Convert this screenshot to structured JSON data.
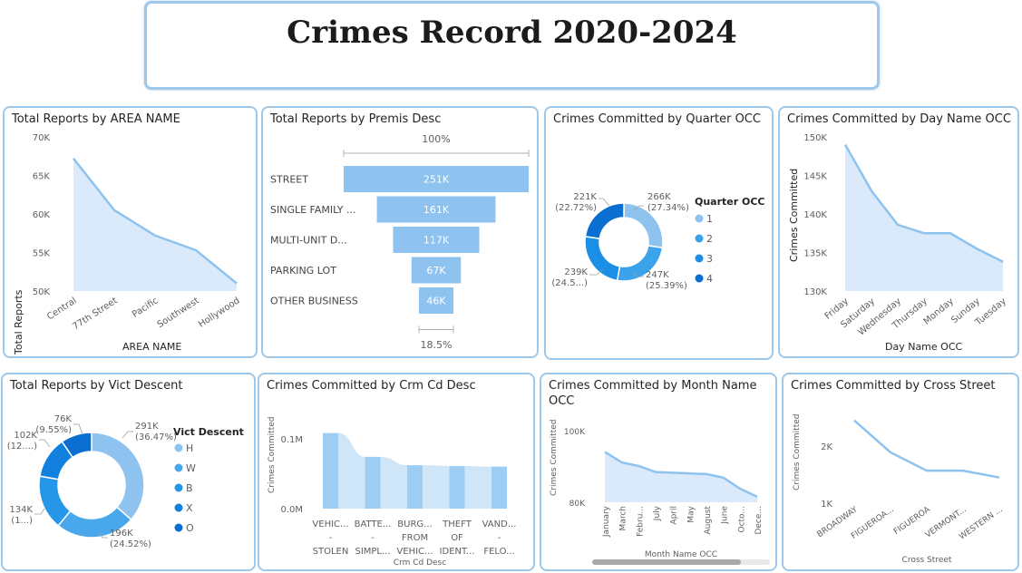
{
  "header": {
    "title": "Crimes Record 2020-2024"
  },
  "colors": {
    "card_border": "#9dc8ea",
    "line": "#8ec3ef",
    "area": "#dbeafb",
    "donut": [
      "#8ec3ef",
      "#3aa3ea",
      "#1b8ee6",
      "#0b6fd1"
    ]
  },
  "area_chart": {
    "title": "Total Reports by AREA NAME",
    "ylabel": "Total Reports",
    "xlabel": "AREA NAME",
    "yticks": [
      "70K",
      "65K",
      "60K",
      "55K",
      "50K"
    ],
    "chart_data": {
      "type": "area",
      "categories": [
        "Central",
        "77th Street",
        "Pacific",
        "Southwest",
        "Hollywood"
      ],
      "values": [
        67200,
        60500,
        57200,
        55300,
        51000
      ],
      "ylim": [
        50000,
        70000
      ]
    }
  },
  "funnel": {
    "title": "Total Reports by Premis Desc",
    "top_pct": "100%",
    "bottom_pct": "18.5%",
    "chart_data": {
      "type": "bar",
      "categories": [
        "STREET",
        "SINGLE FAMILY ...",
        "MULTI-UNIT D...",
        "PARKING LOT",
        "OTHER BUSINESS"
      ],
      "labels": [
        "251K",
        "161K",
        "117K",
        "67K",
        "46K"
      ],
      "values": [
        251,
        161,
        117,
        67,
        46
      ]
    }
  },
  "quarter": {
    "title": "Crimes Committed by Quarter OCC",
    "legend_title": "Quarter OCC",
    "legend": [
      "1",
      "2",
      "3",
      "4"
    ],
    "labels": [
      [
        "266K",
        "(27.34%)"
      ],
      [
        "247K",
        "(25.39%)"
      ],
      [
        "239K",
        "(24.5...)"
      ],
      [
        "221K",
        "(22.72%)"
      ]
    ],
    "chart_data": {
      "type": "pie",
      "categories": [
        "1",
        "2",
        "3",
        "4"
      ],
      "values": [
        266,
        247,
        239,
        221
      ]
    }
  },
  "dayname": {
    "title": "Crimes Committed by Day Name OCC",
    "ylabel": "Crimes Committed",
    "xlabel": "Day Name OCC",
    "yticks": [
      "150K",
      "145K",
      "140K",
      "135K",
      "130K"
    ],
    "chart_data": {
      "type": "area",
      "categories": [
        "Friday",
        "Saturday",
        "Wednesday",
        "Thursday",
        "Monday",
        "Sunday",
        "Tuesday"
      ],
      "values": [
        149000,
        143000,
        138600,
        137500,
        137500,
        135500,
        133800
      ],
      "ylim": [
        130000,
        150000
      ]
    }
  },
  "vict": {
    "title": "Total Reports by Vict Descent",
    "legend_title": "Vict Descent",
    "legend": [
      "H",
      "W",
      "B",
      "X",
      "O"
    ],
    "labels": [
      [
        "291K",
        "(36.47%)"
      ],
      [
        "196K",
        "(24.52%)"
      ],
      [
        "134K",
        "(1...)"
      ],
      [
        "102K",
        "(12....)"
      ],
      [
        "76K",
        "(9.55%)"
      ]
    ],
    "chart_data": {
      "type": "pie",
      "categories": [
        "H",
        "W",
        "B",
        "X",
        "O"
      ],
      "values": [
        291,
        196,
        134,
        102,
        76
      ]
    }
  },
  "crmcd": {
    "title": "Crimes Committed by Crm Cd Desc",
    "ylabel": "Crimes Committed",
    "xlabel": "Crm Cd Desc",
    "yticks": [
      "0.1M",
      "0.0M"
    ],
    "categories": [
      [
        "VEHIC...",
        "-",
        "STOLEN"
      ],
      [
        "BATTE...",
        "-",
        "SIMPL..."
      ],
      [
        "BURG...",
        "FROM",
        "VEHIC..."
      ],
      [
        "THEFT",
        "OF",
        "IDENT..."
      ],
      [
        "VAND...",
        "-",
        "FELO..."
      ]
    ],
    "chart_data": {
      "type": "bar",
      "categories": [
        "VEHIC... - STOLEN",
        "BATTE... - SIMPL...",
        "BURG... FROM VEHIC...",
        "THEFT OF IDENT...",
        "VAND... - FELO..."
      ],
      "values": [
        108000,
        74000,
        62000,
        61000,
        60000
      ],
      "ylim": [
        0,
        140000
      ]
    }
  },
  "month": {
    "title_line1": "Crimes Committed by Month Name",
    "title_line2": "OCC",
    "ylabel": "Crimes Committed",
    "xlabel": "Month Name OCC",
    "yticks": [
      "100K",
      "80K"
    ],
    "chart_data": {
      "type": "area",
      "categories": [
        "January",
        "March",
        "Febru...",
        "July",
        "April",
        "May",
        "August",
        "June",
        "Octo...",
        "Dece..."
      ],
      "values": [
        92500,
        87800,
        86200,
        83500,
        83200,
        82900,
        82600,
        81000,
        76000,
        72500
      ],
      "ylim": [
        70000,
        102000
      ]
    }
  },
  "cross": {
    "title": "Crimes Committed by Cross Street",
    "ylabel": "Crimes Committed",
    "xlabel": "Cross Street",
    "yticks": [
      "2K",
      "1K"
    ],
    "chart_data": {
      "type": "line",
      "categories": [
        "BROADWAY",
        "FIGUEROA...",
        "FIGUEROA",
        "VERMONT...",
        "WESTERN ..."
      ],
      "values": [
        2450,
        1890,
        1570,
        1570,
        1450
      ],
      "ylim": [
        1000,
        2700
      ]
    }
  }
}
